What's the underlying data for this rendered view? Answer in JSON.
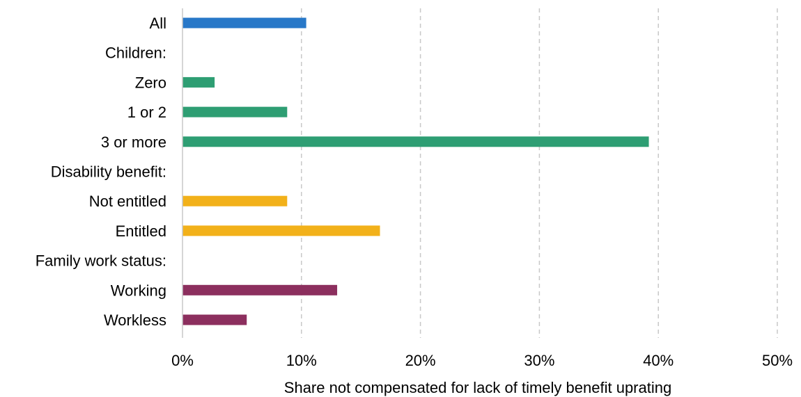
{
  "chart_data": {
    "type": "bar",
    "orientation": "horizontal",
    "xlabel": "Share not compensated for lack of timely benefit uprating",
    "xlim": [
      0,
      50
    ],
    "x_ticks": [
      "0%",
      "10%",
      "20%",
      "30%",
      "40%",
      "50%"
    ],
    "grid": "vertical dashed",
    "categories": [
      "All",
      "Children:",
      "Zero",
      "1 or 2",
      "3 or more",
      "Disability benefit:",
      "Not entitled",
      "Entitled",
      "Family work status:",
      "Working",
      "Workless"
    ],
    "values": [
      10.4,
      null,
      2.7,
      8.8,
      39.2,
      null,
      8.8,
      16.6,
      null,
      13.0,
      5.4
    ],
    "bar_colors": [
      "#2878c8",
      null,
      "#2e9e73",
      "#2e9e73",
      "#2e9e73",
      null,
      "#f2b11a",
      "#f2b11a",
      null,
      "#8c2f5e",
      "#8c2f5e"
    ]
  }
}
